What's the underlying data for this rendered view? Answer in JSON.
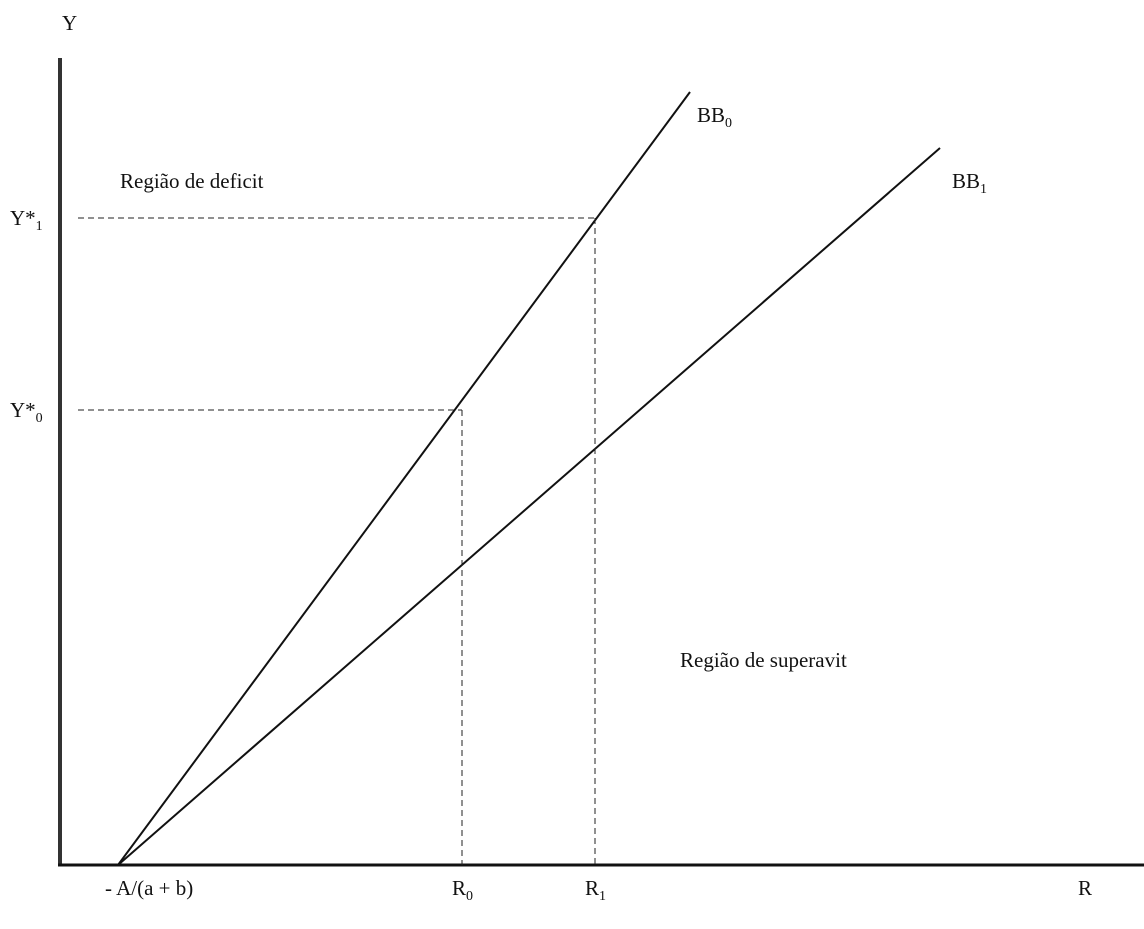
{
  "axes": {
    "y_label": "Y",
    "x_label": "R"
  },
  "lines": [
    {
      "label": {
        "base": "BB",
        "sub": "0"
      }
    },
    {
      "label": {
        "base": "BB",
        "sub": "1"
      }
    }
  ],
  "regions": {
    "deficit": "Região de deficit",
    "surplus": "Região de superavit"
  },
  "y_markers": [
    {
      "base": "Y*",
      "sub": "1"
    },
    {
      "base": "Y*",
      "sub": "0"
    }
  ],
  "x_markers": {
    "origin": "- A/(a + b)",
    "r0": {
      "base": "R",
      "sub": "0"
    },
    "r1": {
      "base": "R",
      "sub": "1"
    }
  }
}
